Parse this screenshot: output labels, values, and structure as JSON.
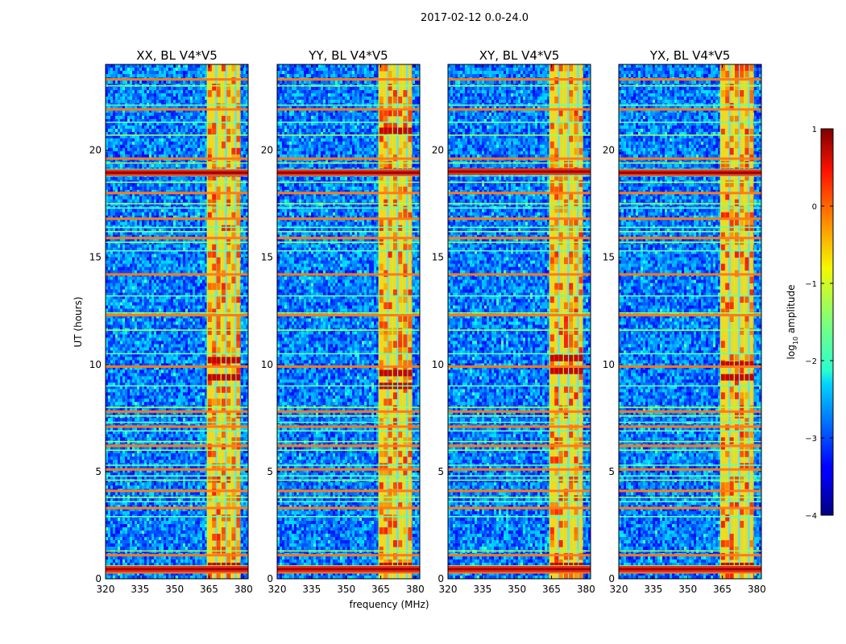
{
  "chart_data": {
    "type": "heatmap",
    "suptitle": "2017-02-12 0.0-24.0",
    "xlabel": "frequency (MHz)",
    "ylabel": "UT (hours)",
    "xlim": [
      320,
      382
    ],
    "ylim": [
      0,
      24
    ],
    "xticks": [
      320,
      335,
      350,
      365,
      380
    ],
    "yticks": [
      0,
      5,
      10,
      15,
      20
    ],
    "panels": [
      {
        "title": "XX, BL V4*V5",
        "strong_rfi_hours": [
          0.45,
          18.95
        ],
        "band_peak_hours": [
          0.6,
          18.9,
          10.2,
          9.4
        ]
      },
      {
        "title": "YY, BL V4*V5",
        "strong_rfi_hours": [
          0.45,
          18.95
        ],
        "band_peak_hours": [
          0.6,
          19.0,
          9.6,
          9.0,
          20.9
        ]
      },
      {
        "title": "XY, BL V4*V5",
        "strong_rfi_hours": [
          0.45,
          19.0
        ],
        "band_peak_hours": [
          0.6,
          19.0,
          9.7,
          10.3
        ]
      },
      {
        "title": "YX, BL V4*V5",
        "strong_rfi_hours": [
          0.45,
          18.95
        ],
        "band_peak_hours": [
          0.6,
          19.0,
          9.4,
          10.0
        ]
      }
    ],
    "rfi_band_mhz": [
      364,
      378
    ],
    "rfi_hours": [
      0.3,
      0.45,
      0.6,
      1.1,
      1.3,
      2.9,
      3.3,
      3.6,
      3.8,
      4.1,
      4.6,
      4.8,
      5.1,
      5.3,
      6.0,
      6.2,
      6.4,
      6.9,
      7.1,
      7.3,
      7.6,
      7.8,
      8.0,
      9.0,
      9.9,
      10.5,
      11.6,
      12.3,
      12.4,
      13.2,
      14.2,
      15.3,
      15.7,
      15.9,
      16.2,
      16.4,
      16.8,
      17.3,
      17.5,
      18.0,
      18.5,
      18.8,
      18.95,
      19.1,
      19.4,
      19.6,
      20.7,
      21.3,
      21.9,
      22.1,
      23.0,
      23.3
    ],
    "colorbar": {
      "label": "log10 amplitude",
      "label_main": "log",
      "label_sub": "10",
      "label_tail": " amplitude",
      "range": [
        -4,
        1
      ],
      "ticks": [
        1,
        0,
        -1,
        -2,
        -3,
        -4
      ],
      "tick_labels": [
        "1",
        "0",
        "−1",
        "−2",
        "−3",
        "−4"
      ],
      "colormap": "jet"
    }
  }
}
